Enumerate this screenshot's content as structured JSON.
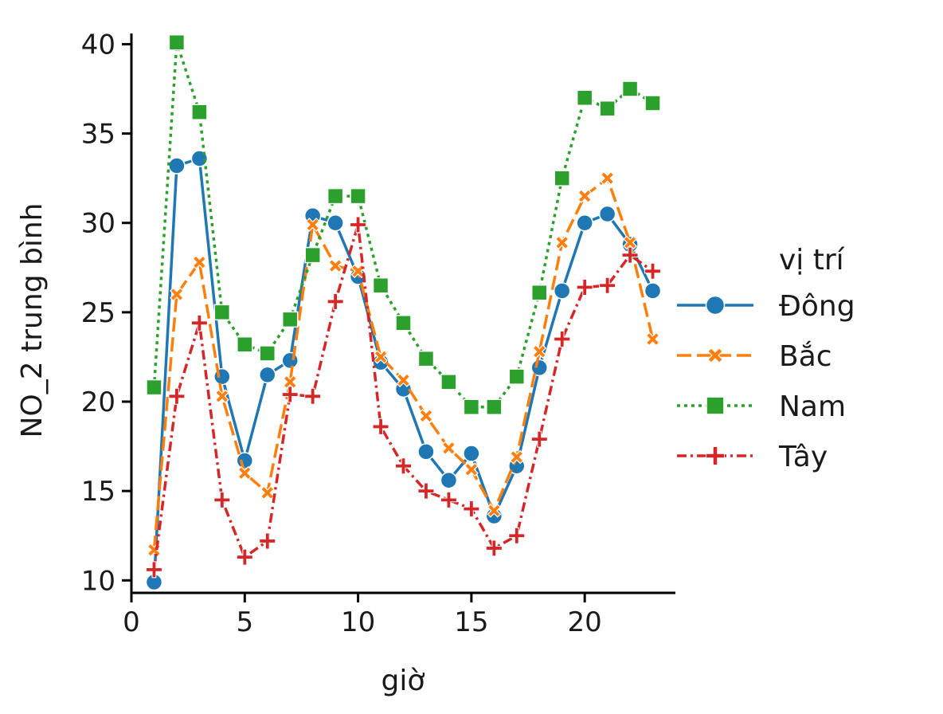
{
  "chart_data": {
    "type": "line",
    "xlabel": "giờ",
    "ylabel": "NO_2 trung bình",
    "xlim": [
      0,
      24
    ],
    "ylim": [
      9.3,
      40.6
    ],
    "xticks": [
      0,
      5,
      10,
      15,
      20
    ],
    "yticks": [
      10,
      15,
      20,
      25,
      30,
      35,
      40
    ],
    "grid": false,
    "legend_title": "vị trí",
    "legend_position": "right",
    "x": [
      1,
      2,
      3,
      4,
      5,
      6,
      7,
      8,
      9,
      10,
      11,
      12,
      13,
      14,
      15,
      16,
      17,
      18,
      19,
      20,
      21,
      22,
      23
    ],
    "series": [
      {
        "name": "Đông",
        "color": "#1f77b4",
        "style": "solid",
        "marker": "circle",
        "values": [
          9.9,
          33.2,
          33.6,
          21.4,
          16.7,
          21.5,
          22.3,
          30.4,
          30.0,
          27.0,
          22.2,
          20.7,
          17.2,
          15.6,
          17.1,
          13.6,
          16.4,
          21.9,
          26.2,
          30.0,
          30.5,
          28.8,
          26.2
        ]
      },
      {
        "name": "Bắc",
        "color": "#ff7f0e",
        "style": "dashed",
        "marker": "x",
        "values": [
          11.7,
          26.0,
          27.8,
          20.3,
          16.0,
          14.9,
          21.1,
          29.9,
          27.6,
          27.3,
          22.5,
          21.2,
          19.2,
          17.4,
          16.2,
          13.9,
          16.9,
          22.8,
          28.9,
          31.5,
          32.5,
          28.9,
          23.5
        ]
      },
      {
        "name": "Nam",
        "color": "#2ca02c",
        "style": "dotted",
        "marker": "square",
        "values": [
          20.8,
          40.1,
          36.2,
          25.0,
          23.2,
          22.7,
          24.6,
          28.2,
          31.5,
          31.5,
          26.5,
          24.4,
          22.4,
          21.1,
          19.7,
          19.7,
          21.4,
          26.1,
          32.5,
          37.0,
          36.4,
          37.5,
          36.7
        ]
      },
      {
        "name": "Tây",
        "color": "#d62728",
        "style": "dashdot",
        "marker": "plus",
        "values": [
          10.6,
          20.3,
          24.4,
          14.5,
          11.3,
          12.2,
          20.4,
          20.3,
          25.6,
          29.9,
          18.6,
          16.4,
          15.0,
          14.5,
          14.0,
          11.8,
          12.5,
          17.9,
          23.5,
          26.4,
          26.5,
          28.2,
          27.3
        ]
      }
    ]
  }
}
